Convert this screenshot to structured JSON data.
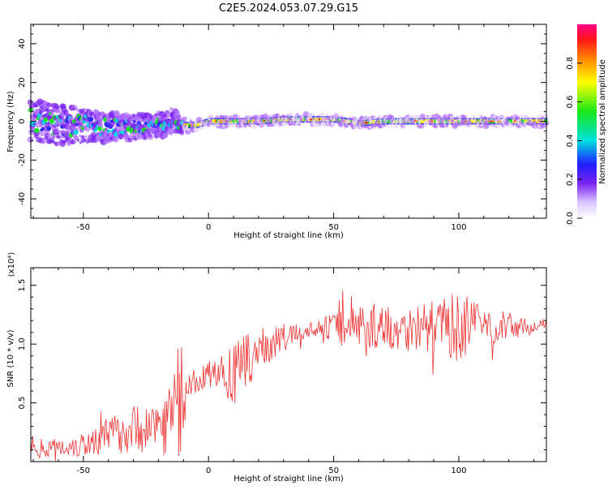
{
  "title": "C2E5.2024.053.07.29.G15",
  "chart_data": [
    {
      "type": "heatmap",
      "xlabel": "Height of straight line (km)",
      "ylabel": "Frequency (Hz)",
      "xlim": [
        -71,
        135
      ],
      "ylim": [
        -50,
        50
      ],
      "x_ticks": [
        -50,
        0,
        50,
        100
      ],
      "y_ticks": [
        -40,
        -20,
        0,
        20,
        40
      ],
      "colorbar": {
        "label": "Normalized spectral amplitude",
        "range": [
          0,
          1
        ],
        "ticks": [
          "0.0",
          "0.2",
          "0.4",
          "0.6",
          "0.8"
        ]
      },
      "trend": {
        "x": [
          -71,
          -60,
          -50,
          -40,
          -30,
          -20,
          -14,
          -10,
          -5,
          0,
          10,
          20,
          30,
          40,
          50,
          60,
          70,
          80,
          90,
          100,
          110,
          120,
          134
        ],
        "center_freq": [
          1,
          -2,
          -2,
          -3,
          -3,
          -2,
          0,
          -2,
          -2,
          0,
          0,
          0,
          1,
          1,
          1,
          -1,
          0,
          0,
          0,
          0,
          0,
          0,
          0
        ],
        "half_width": [
          8,
          8,
          7,
          6,
          5,
          5,
          5,
          3,
          2,
          2,
          2,
          2,
          2,
          2,
          2,
          2,
          2,
          2,
          2,
          2,
          2,
          2,
          2
        ]
      }
    },
    {
      "type": "line",
      "xlabel": "Height of straight line (km)",
      "ylabel": "SNR (10 * v/v)",
      "y_multiplier": "(x10⁴)",
      "xlim": [
        -71,
        135
      ],
      "ylim": [
        0,
        1.65
      ],
      "x_ticks": [
        -50,
        0,
        50,
        100
      ],
      "y_ticks": [
        0.5,
        1.0,
        1.5
      ],
      "color": "#ee3333",
      "envelope": {
        "x": [
          -71,
          -60,
          -50,
          -40,
          -30,
          -20,
          -15,
          -10,
          -9,
          -5,
          0,
          5,
          10,
          20,
          30,
          40,
          50,
          60,
          70,
          80,
          90,
          100,
          110,
          120,
          130,
          135
        ],
        "mean": [
          0.12,
          0.12,
          0.15,
          0.22,
          0.28,
          0.32,
          0.38,
          0.48,
          0.62,
          0.68,
          0.74,
          0.77,
          0.72,
          0.95,
          1.05,
          1.12,
          1.15,
          1.16,
          1.15,
          1.14,
          1.15,
          1.15,
          1.16,
          1.15,
          1.14,
          1.18
        ],
        "amplitude": [
          0.08,
          0.08,
          0.12,
          0.16,
          0.2,
          0.25,
          0.35,
          0.45,
          0.1,
          0.12,
          0.12,
          0.12,
          0.3,
          0.18,
          0.12,
          0.06,
          0.12,
          0.2,
          0.2,
          0.2,
          0.22,
          0.3,
          0.18,
          0.12,
          0.05,
          0.04
        ]
      }
    }
  ]
}
